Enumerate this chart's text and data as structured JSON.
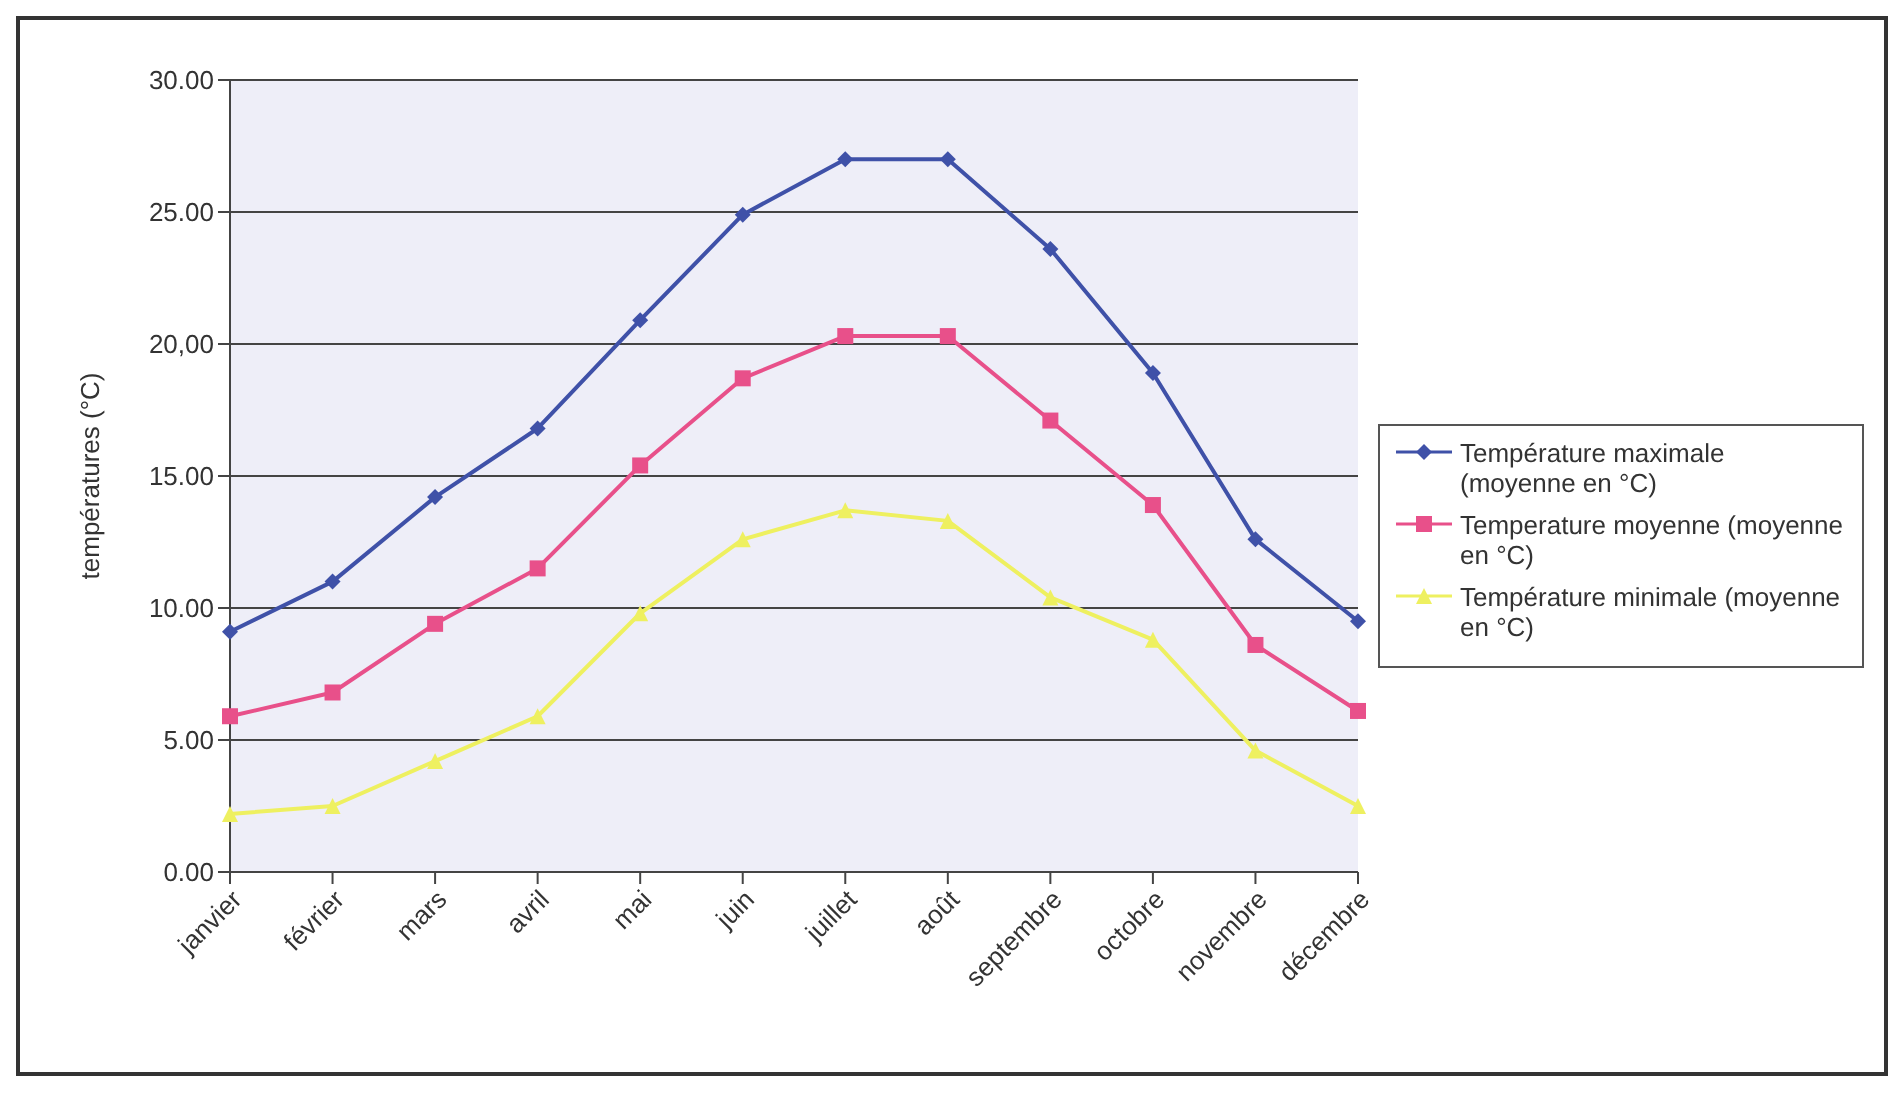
{
  "chart_data": {
    "type": "line",
    "ylabel": "températures (°C)",
    "categories": [
      "janvier",
      "février",
      "mars",
      "avril",
      "mai",
      "juin",
      "juillet",
      "août",
      "septembre",
      "octobre",
      "novembre",
      "décembre"
    ],
    "series": [
      {
        "name": "Température maximale (moyenne en °C)",
        "color": "#3f51a8",
        "marker": "diamond",
        "values": [
          9.1,
          11.0,
          14.2,
          16.8,
          20.9,
          24.9,
          27.0,
          27.0,
          23.6,
          18.9,
          12.6,
          9.5
        ]
      },
      {
        "name": "Temperature moyenne (moyenne en °C)",
        "color": "#e8508a",
        "marker": "square",
        "values": [
          5.9,
          6.8,
          9.4,
          11.5,
          15.4,
          18.7,
          20.3,
          20.3,
          17.1,
          13.9,
          8.6,
          6.1
        ]
      },
      {
        "name": "Température minimale (moyenne en °C)",
        "color": "#eef060",
        "marker": "triangle",
        "values": [
          2.2,
          2.5,
          4.2,
          5.9,
          9.8,
          12.6,
          13.7,
          13.3,
          10.4,
          8.8,
          4.6,
          2.5
        ]
      }
    ],
    "ylim": [
      0,
      30
    ],
    "yticks": [
      {
        "value": 0,
        "label": "0.00"
      },
      {
        "value": 5,
        "label": "5.00"
      },
      {
        "value": 10,
        "label": "10.00"
      },
      {
        "value": 15,
        "label": "15.00"
      },
      {
        "value": 20,
        "label": "20,00"
      },
      {
        "value": 25,
        "label": "25.00"
      },
      {
        "value": 30,
        "label": "30.00"
      }
    ],
    "grid": "y",
    "legend": "right",
    "line_style": "solid"
  }
}
